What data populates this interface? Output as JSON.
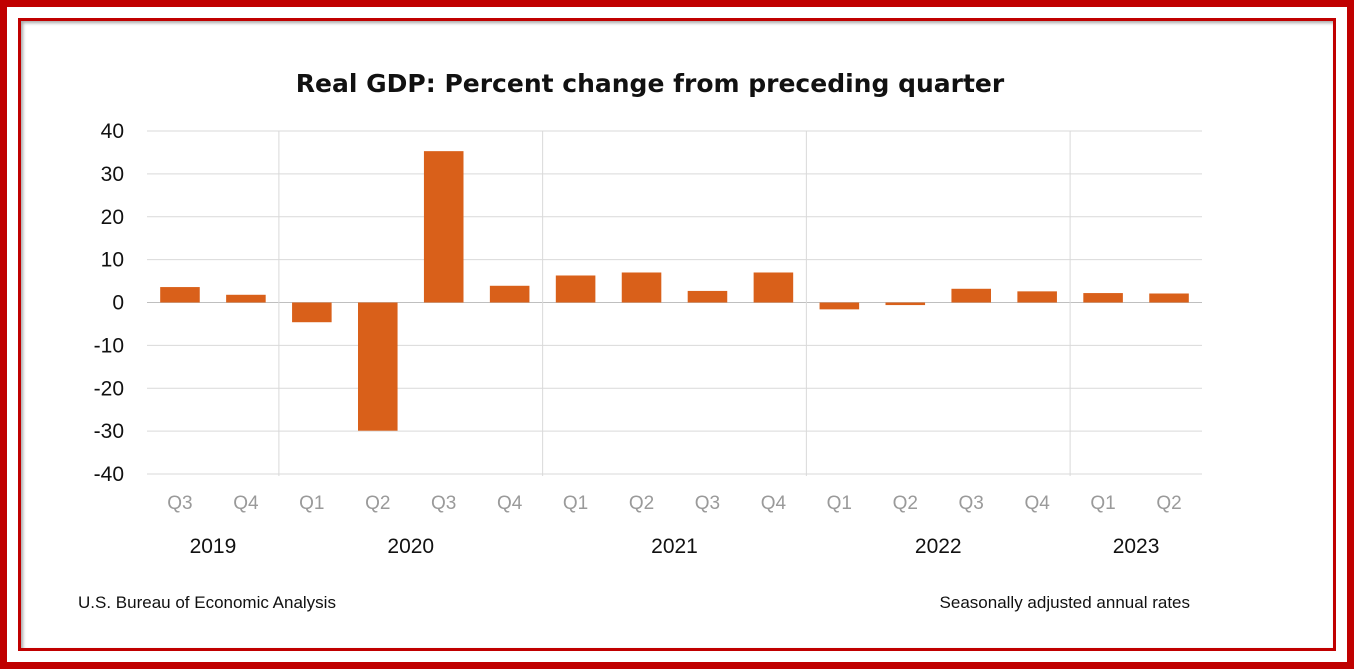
{
  "chart_data": {
    "type": "bar",
    "title": "Real GDP: Percent change from preceding quarter",
    "categories": [
      "Q3",
      "Q4",
      "Q1",
      "Q2",
      "Q3",
      "Q4",
      "Q1",
      "Q2",
      "Q3",
      "Q4",
      "Q1",
      "Q2",
      "Q3",
      "Q4",
      "Q1",
      "Q2"
    ],
    "years": [
      {
        "label": "2019",
        "start": 0,
        "end": 1
      },
      {
        "label": "2020",
        "start": 2,
        "end": 5
      },
      {
        "label": "2021",
        "start": 6,
        "end": 9
      },
      {
        "label": "2022",
        "start": 10,
        "end": 13
      },
      {
        "label": "2023",
        "start": 14,
        "end": 15
      }
    ],
    "series": [
      {
        "name": "Real GDP",
        "values": [
          3.6,
          1.8,
          -4.6,
          -29.9,
          35.3,
          3.9,
          6.3,
          7.0,
          2.7,
          7.0,
          -1.6,
          -0.6,
          3.2,
          2.6,
          2.2,
          2.1
        ]
      }
    ],
    "ylim": [
      -40,
      40
    ],
    "yticks": [
      40,
      30,
      20,
      10,
      0,
      -10,
      -20,
      -30,
      -40
    ],
    "xlabel": "",
    "ylabel": "",
    "grid": true,
    "bar_color": "#d9601a",
    "source": "U.S. Bureau of Economic Analysis",
    "note": "Seasonally adjusted annual rates"
  },
  "colors": {
    "frame": "#c00000",
    "bar": "#d9601a",
    "grid": "#d9d9d9"
  }
}
